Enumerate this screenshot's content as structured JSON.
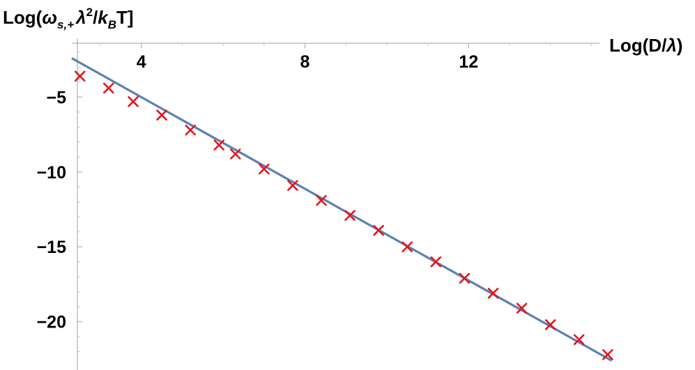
{
  "chart_data": {
    "type": "scatter",
    "xlabel": "Log(D/λ)",
    "ylabel": "Log(ω_{s,+} λ^2 / k_B T]",
    "xlim": [
      2.3,
      15.2
    ],
    "ylim": [
      -22.9,
      -1.4
    ],
    "xticks": [
      4,
      8,
      12
    ],
    "xtick_labels": [
      "4",
      "8",
      "12"
    ],
    "yticks": [
      -5,
      -10,
      -15,
      -20
    ],
    "ytick_labels": [
      "−5",
      "−10",
      "−15",
      "−20"
    ],
    "grid": false,
    "legend": "none",
    "series": [
      {
        "kind": "markers",
        "marker": "x",
        "color": "#e8141b",
        "x": [
          2.5,
          3.2,
          3.8,
          4.5,
          5.2,
          5.9,
          6.3,
          7.0,
          7.7,
          8.4,
          9.1,
          9.8,
          10.5,
          11.2,
          11.9,
          12.6,
          13.3,
          14.0,
          14.7,
          15.4
        ],
        "y": [
          -3.6,
          -4.4,
          -5.3,
          -6.2,
          -7.2,
          -8.2,
          -8.8,
          -9.8,
          -10.9,
          -11.9,
          -12.9,
          -13.9,
          -15.0,
          -16.0,
          -17.1,
          -18.1,
          -19.1,
          -20.2,
          -21.2,
          -22.2
        ]
      },
      {
        "kind": "line",
        "color": "#5b80b4",
        "x": [
          2.3,
          15.5
        ],
        "y": [
          -2.4,
          -22.6
        ]
      }
    ]
  }
}
